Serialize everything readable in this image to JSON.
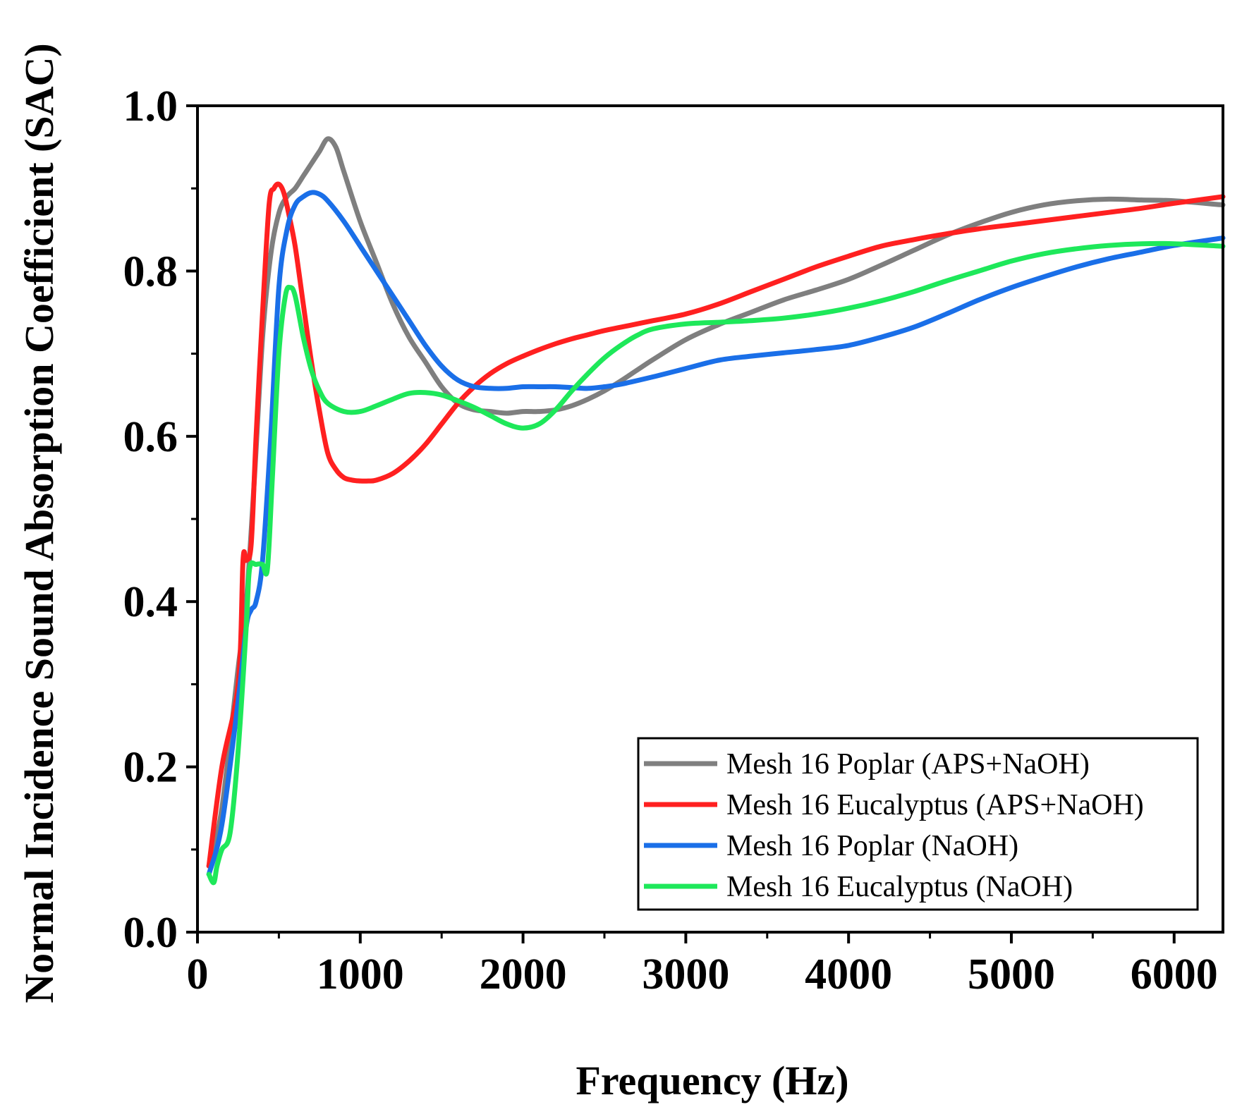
{
  "chart_data": {
    "type": "line",
    "title": "",
    "xlabel": "Frequency (Hz)",
    "ylabel": "Normal Incidence Sound Absorption Coefficient (SAC)",
    "xlim": [
      0,
      6300
    ],
    "ylim": [
      0.0,
      1.0
    ],
    "xticks": [
      0,
      1000,
      2000,
      3000,
      4000,
      5000,
      6000
    ],
    "xtick_labels": [
      "0",
      "1000",
      "2000",
      "3000",
      "4000",
      "5000",
      "6000"
    ],
    "yticks": [
      0.0,
      0.2,
      0.4,
      0.6,
      0.8,
      1.0
    ],
    "ytick_labels": [
      "0.0",
      "0.2",
      "0.4",
      "0.6",
      "0.8",
      "1.0"
    ],
    "grid": false,
    "legend_position": "bottom-right",
    "series": [
      {
        "name": "Mesh 16 Poplar (APS+NaOH)",
        "color": "#7f7f7f",
        "x": [
          70,
          150,
          250,
          300,
          350,
          400,
          450,
          500,
          550,
          600,
          650,
          700,
          750,
          800,
          850,
          900,
          1000,
          1100,
          1200,
          1300,
          1400,
          1500,
          1600,
          1700,
          1800,
          1900,
          2000,
          2100,
          2200,
          2300,
          2400,
          2500,
          2600,
          2700,
          2800,
          3000,
          3200,
          3400,
          3600,
          3800,
          4000,
          4200,
          4400,
          4600,
          4800,
          5000,
          5200,
          5400,
          5600,
          5800,
          6000,
          6300
        ],
        "y": [
          0.08,
          0.15,
          0.32,
          0.4,
          0.55,
          0.72,
          0.82,
          0.87,
          0.89,
          0.9,
          0.915,
          0.93,
          0.945,
          0.96,
          0.95,
          0.92,
          0.86,
          0.81,
          0.76,
          0.72,
          0.69,
          0.66,
          0.64,
          0.632,
          0.63,
          0.628,
          0.63,
          0.63,
          0.632,
          0.637,
          0.645,
          0.655,
          0.667,
          0.68,
          0.693,
          0.717,
          0.735,
          0.75,
          0.765,
          0.777,
          0.79,
          0.807,
          0.825,
          0.843,
          0.858,
          0.871,
          0.88,
          0.885,
          0.887,
          0.886,
          0.885,
          0.88
        ]
      },
      {
        "name": "Mesh 16 Eucalyptus (APS+NaOH)",
        "color": "#ff2020",
        "x": [
          70,
          150,
          250,
          280,
          300,
          330,
          360,
          400,
          440,
          470,
          500,
          530,
          560,
          600,
          650,
          700,
          750,
          800,
          850,
          900,
          950,
          1000,
          1050,
          1100,
          1200,
          1300,
          1400,
          1500,
          1600,
          1700,
          1800,
          1900,
          2000,
          2100,
          2200,
          2300,
          2400,
          2500,
          2600,
          2800,
          3000,
          3200,
          3400,
          3600,
          3800,
          4000,
          4200,
          4400,
          4600,
          4800,
          5000,
          5200,
          5400,
          5600,
          5800,
          6000,
          6300
        ],
        "y": [
          0.08,
          0.2,
          0.3,
          0.45,
          0.45,
          0.47,
          0.6,
          0.75,
          0.88,
          0.9,
          0.905,
          0.895,
          0.87,
          0.83,
          0.76,
          0.69,
          0.63,
          0.58,
          0.56,
          0.55,
          0.547,
          0.546,
          0.546,
          0.547,
          0.555,
          0.57,
          0.59,
          0.615,
          0.64,
          0.66,
          0.676,
          0.688,
          0.697,
          0.705,
          0.712,
          0.718,
          0.723,
          0.728,
          0.732,
          0.74,
          0.748,
          0.76,
          0.775,
          0.79,
          0.805,
          0.818,
          0.83,
          0.838,
          0.845,
          0.851,
          0.856,
          0.861,
          0.866,
          0.871,
          0.876,
          0.882,
          0.89
        ]
      },
      {
        "name": "Mesh 16 Poplar (NaOH)",
        "color": "#1a6fe8",
        "x": [
          70,
          150,
          250,
          300,
          330,
          360,
          400,
          450,
          500,
          550,
          600,
          650,
          700,
          750,
          800,
          900,
          1000,
          1100,
          1200,
          1300,
          1400,
          1500,
          1600,
          1700,
          1800,
          1900,
          2000,
          2100,
          2200,
          2300,
          2400,
          2500,
          2600,
          2800,
          3000,
          3200,
          3400,
          3600,
          3800,
          4000,
          4200,
          4400,
          4600,
          4800,
          5000,
          5200,
          5400,
          5600,
          5800,
          6000,
          6300
        ],
        "y": [
          0.07,
          0.13,
          0.28,
          0.37,
          0.39,
          0.4,
          0.45,
          0.6,
          0.78,
          0.85,
          0.88,
          0.89,
          0.895,
          0.893,
          0.885,
          0.86,
          0.83,
          0.8,
          0.77,
          0.74,
          0.71,
          0.685,
          0.668,
          0.66,
          0.658,
          0.658,
          0.66,
          0.66,
          0.66,
          0.659,
          0.658,
          0.66,
          0.663,
          0.672,
          0.682,
          0.692,
          0.697,
          0.701,
          0.705,
          0.71,
          0.72,
          0.732,
          0.748,
          0.765,
          0.78,
          0.793,
          0.805,
          0.815,
          0.823,
          0.831,
          0.84
        ]
      },
      {
        "name": "Mesh 16 Eucalyptus (NaOH)",
        "color": "#1ee85a",
        "x": [
          70,
          100,
          120,
          150,
          200,
          250,
          300,
          320,
          360,
          400,
          430,
          460,
          500,
          540,
          570,
          600,
          650,
          700,
          750,
          800,
          900,
          1000,
          1100,
          1200,
          1300,
          1400,
          1500,
          1600,
          1700,
          1800,
          1900,
          2000,
          2100,
          2200,
          2300,
          2400,
          2500,
          2600,
          2700,
          2800,
          3000,
          3200,
          3400,
          3600,
          3800,
          4000,
          4200,
          4400,
          4600,
          4800,
          5000,
          5200,
          5400,
          5600,
          5800,
          6000,
          6300
        ],
        "y": [
          0.07,
          0.06,
          0.08,
          0.1,
          0.12,
          0.22,
          0.37,
          0.44,
          0.445,
          0.445,
          0.44,
          0.55,
          0.7,
          0.77,
          0.78,
          0.77,
          0.72,
          0.68,
          0.655,
          0.64,
          0.63,
          0.63,
          0.637,
          0.645,
          0.652,
          0.653,
          0.65,
          0.643,
          0.635,
          0.625,
          0.615,
          0.61,
          0.615,
          0.632,
          0.655,
          0.676,
          0.695,
          0.71,
          0.722,
          0.73,
          0.736,
          0.738,
          0.74,
          0.743,
          0.748,
          0.755,
          0.764,
          0.775,
          0.788,
          0.8,
          0.812,
          0.821,
          0.827,
          0.831,
          0.833,
          0.833,
          0.83
        ]
      }
    ]
  }
}
